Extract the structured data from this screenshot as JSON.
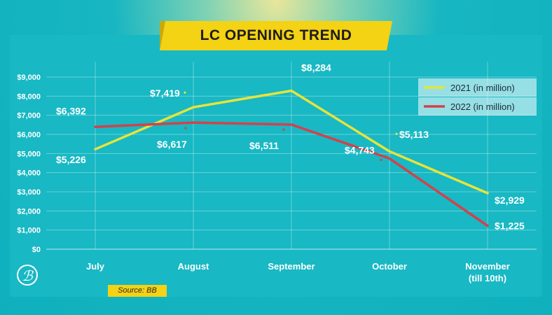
{
  "title": "LC OPENING TREND",
  "source": "Source: BB",
  "colors": {
    "series_2021": "#e6e43a",
    "series_2022": "#d2424b",
    "banner": "#f4d214",
    "background": "#17b6c2"
  },
  "chart_data": {
    "type": "line",
    "title": "LC OPENING TREND",
    "categories": [
      "July",
      "August",
      "September",
      "October",
      "November\n(till 10th)"
    ],
    "series": [
      {
        "name": "2021 (in million)",
        "values": [
          5226,
          7419,
          8284,
          5113,
          2929
        ],
        "labels": [
          "$5,226",
          "$7,419",
          "$8,284",
          "$5,113",
          "$2,929"
        ]
      },
      {
        "name": "2022 (in million)",
        "values": [
          6392,
          6617,
          6511,
          4743,
          1225
        ],
        "labels": [
          "$6,392",
          "$6,617",
          "$6,511",
          "$4,743",
          "$1,225"
        ]
      }
    ],
    "yticks": [
      "$0",
      "$1,000",
      "$2,000",
      "$3,000",
      "$4,000",
      "$5,000",
      "$6,000",
      "$7,000",
      "$8,000",
      "$9,000"
    ],
    "ylim": [
      0,
      9000
    ],
    "grid": true,
    "legend_position": "top-right"
  }
}
